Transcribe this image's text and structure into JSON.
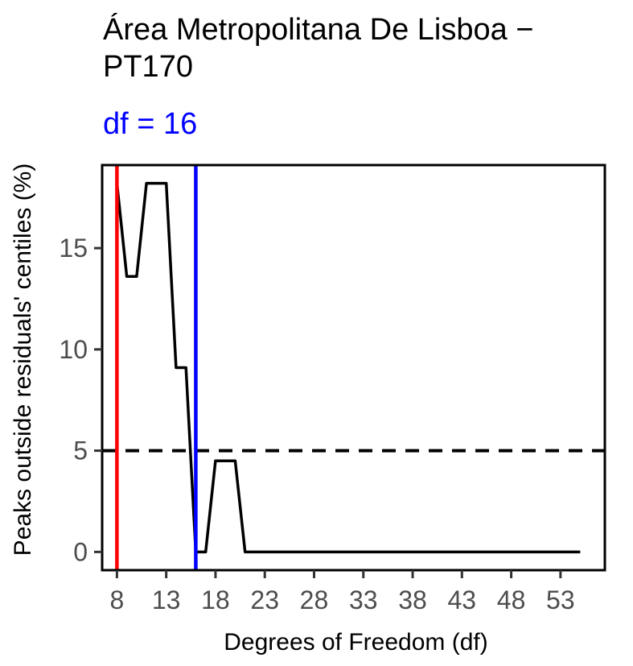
{
  "chart_data": {
    "type": "line",
    "title": "Área Metropolitana De Lisboa − PT170",
    "subtitle": "df = 16",
    "xlabel": "Degrees of Freedom (df)",
    "ylabel": "Peaks outside residuals' centiles (%)",
    "xlim": [
      6.5,
      57.5
    ],
    "ylim": [
      -0.9,
      19.1
    ],
    "xticks": [
      8,
      13,
      18,
      23,
      28,
      33,
      38,
      43,
      48,
      53
    ],
    "yticks": [
      0,
      5,
      10,
      15
    ],
    "series": [
      {
        "color": "#000000",
        "x": [
          8,
          9,
          10,
          11,
          12,
          13,
          14,
          15,
          16,
          17,
          18,
          19,
          20,
          21,
          22,
          23,
          24,
          25,
          26,
          27,
          28,
          29,
          30,
          31,
          32,
          33,
          34,
          35,
          36,
          37,
          38,
          39,
          40,
          41,
          42,
          43,
          44,
          45,
          46,
          47,
          48,
          49,
          50,
          51,
          52,
          53,
          54,
          55
        ],
        "y": [
          18.2,
          13.6,
          13.6,
          18.2,
          18.2,
          18.2,
          9.1,
          9.1,
          0,
          0,
          4.5,
          4.5,
          4.5,
          0,
          0,
          0,
          0,
          0,
          0,
          0,
          0,
          0,
          0,
          0,
          0,
          0,
          0,
          0,
          0,
          0,
          0,
          0,
          0,
          0,
          0,
          0,
          0,
          0,
          0,
          0,
          0,
          0,
          0,
          0,
          0,
          0,
          0,
          0
        ]
      }
    ],
    "reference_lines": {
      "horizontal": [
        {
          "y": 5,
          "color": "#000000",
          "style": "dashed"
        }
      ],
      "vertical": [
        {
          "x": 8,
          "color": "#ff0000",
          "style": "solid"
        },
        {
          "x": 16,
          "color": "#0000ff",
          "style": "solid"
        }
      ]
    },
    "grid": false,
    "legend": "none"
  }
}
